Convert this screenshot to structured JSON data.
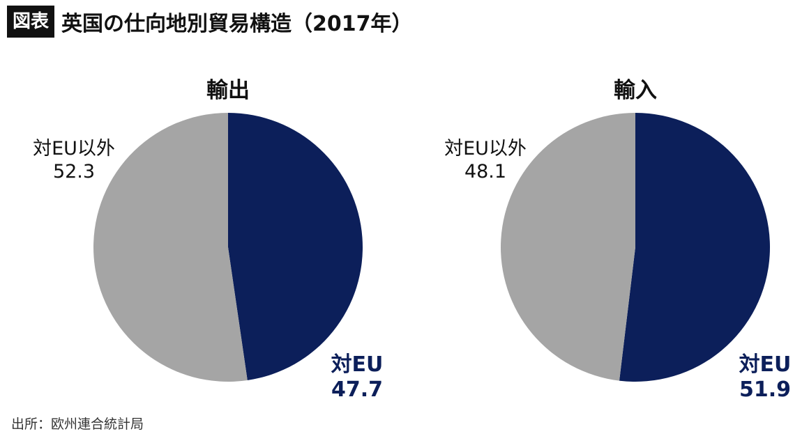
{
  "header": {
    "badge": "図表",
    "title": "英国の仕向地別貿易構造（2017年）"
  },
  "source": "出所：欧州連合統計局",
  "colors": {
    "eu": "#0c1f5a",
    "non_eu": "#a5a5a5",
    "text": "#111111"
  },
  "chart_data": [
    {
      "type": "pie",
      "title": "輸出",
      "slices": [
        {
          "label": "対EU",
          "value": 47.7,
          "display": "47.7",
          "color": "#0c1f5a"
        },
        {
          "label": "対EU以外",
          "value": 52.3,
          "display": "52.3",
          "color": "#a5a5a5"
        }
      ]
    },
    {
      "type": "pie",
      "title": "輸入",
      "slices": [
        {
          "label": "対EU",
          "value": 51.9,
          "display": "51.9",
          "color": "#0c1f5a"
        },
        {
          "label": "対EU以外",
          "value": 48.1,
          "display": "48.1",
          "color": "#a5a5a5"
        }
      ]
    }
  ]
}
